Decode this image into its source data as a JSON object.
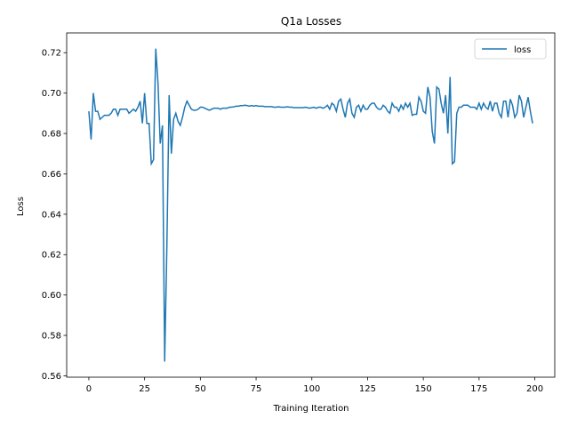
{
  "chart_data": {
    "type": "line",
    "title": "Q1a Losses",
    "xlabel": "Training Iteration",
    "ylabel": "Loss",
    "legend": "upper right",
    "grid": false,
    "xlim": [
      -9.95,
      208.95
    ],
    "xticks": [
      0,
      25,
      50,
      75,
      100,
      125,
      150,
      175,
      200
    ],
    "ylim": [
      0.5593,
      0.7298
    ],
    "yticks": [
      0.56,
      0.58,
      {
        "value": 0.6,
        "label": "0.60"
      },
      0.62,
      0.64,
      0.66,
      0.68,
      {
        "value": 0.7,
        "label": "0.70"
      },
      0.72
    ],
    "x": [
      0,
      1,
      2,
      3,
      4,
      5,
      6,
      7,
      8,
      9,
      10,
      11,
      12,
      13,
      14,
      15,
      16,
      17,
      18,
      19,
      20,
      21,
      22,
      23,
      24,
      25,
      26,
      27,
      28,
      29,
      30,
      31,
      32,
      33,
      34,
      35,
      36,
      37,
      38,
      39,
      40,
      41,
      42,
      43,
      44,
      45,
      46,
      47,
      48,
      49,
      50,
      51,
      52,
      53,
      54,
      55,
      56,
      57,
      58,
      59,
      60,
      61,
      62,
      63,
      64,
      65,
      66,
      67,
      68,
      69,
      70,
      71,
      72,
      73,
      74,
      75,
      76,
      77,
      78,
      79,
      80,
      81,
      82,
      83,
      84,
      85,
      86,
      87,
      88,
      89,
      90,
      91,
      92,
      93,
      94,
      95,
      96,
      97,
      98,
      99,
      100,
      101,
      102,
      103,
      104,
      105,
      106,
      107,
      108,
      109,
      110,
      111,
      112,
      113,
      114,
      115,
      116,
      117,
      118,
      119,
      120,
      121,
      122,
      123,
      124,
      125,
      126,
      127,
      128,
      129,
      130,
      131,
      132,
      133,
      134,
      135,
      136,
      137,
      138,
      139,
      140,
      141,
      142,
      143,
      144,
      145,
      146,
      147,
      148,
      149,
      150,
      151,
      152,
      153,
      154,
      155,
      156,
      157,
      158,
      159,
      160,
      161,
      162,
      163,
      164,
      165,
      166,
      167,
      168,
      169,
      170,
      171,
      172,
      173,
      174,
      175,
      176,
      177,
      178,
      179,
      180,
      181,
      182,
      183,
      184,
      185,
      186,
      187,
      188,
      189,
      190,
      191,
      192,
      193,
      194,
      195,
      196,
      197,
      198,
      199
    ],
    "series": [
      {
        "name": "loss",
        "color": "#1f77b4",
        "values": [
          0.691,
          0.677,
          0.7,
          0.691,
          0.691,
          0.687,
          0.688,
          0.689,
          0.689,
          0.689,
          0.69,
          0.692,
          0.692,
          0.689,
          0.692,
          0.692,
          0.692,
          0.692,
          0.69,
          0.691,
          0.692,
          0.691,
          0.693,
          0.696,
          0.685,
          0.7,
          0.685,
          0.685,
          0.665,
          0.667,
          0.722,
          0.705,
          0.675,
          0.684,
          0.567,
          0.625,
          0.699,
          0.67,
          0.687,
          0.69,
          0.686,
          0.684,
          0.688,
          0.693,
          0.696,
          0.694,
          0.692,
          0.6915,
          0.6915,
          0.692,
          0.693,
          0.693,
          0.6925,
          0.692,
          0.6915,
          0.692,
          0.6925,
          0.6925,
          0.6925,
          0.692,
          0.6925,
          0.6925,
          0.6925,
          0.693,
          0.693,
          0.6932,
          0.6935,
          0.6935,
          0.6938,
          0.6938,
          0.694,
          0.6938,
          0.6935,
          0.6938,
          0.6935,
          0.6938,
          0.6935,
          0.6935,
          0.6935,
          0.6933,
          0.6933,
          0.6933,
          0.6933,
          0.693,
          0.693,
          0.6932,
          0.693,
          0.693,
          0.693,
          0.6932,
          0.693,
          0.693,
          0.6928,
          0.6928,
          0.6928,
          0.6928,
          0.6928,
          0.693,
          0.6928,
          0.6925,
          0.6928,
          0.693,
          0.6925,
          0.693,
          0.693,
          0.6925,
          0.693,
          0.694,
          0.692,
          0.695,
          0.694,
          0.691,
          0.696,
          0.697,
          0.692,
          0.688,
          0.695,
          0.697,
          0.69,
          0.688,
          0.693,
          0.694,
          0.691,
          0.694,
          0.692,
          0.692,
          0.694,
          0.695,
          0.695,
          0.693,
          0.692,
          0.692,
          0.694,
          0.693,
          0.691,
          0.69,
          0.695,
          0.693,
          0.693,
          0.691,
          0.694,
          0.692,
          0.695,
          0.693,
          0.695,
          0.689,
          0.6895,
          0.6895,
          0.698,
          0.696,
          0.691,
          0.69,
          0.703,
          0.698,
          0.681,
          0.675,
          0.703,
          0.702,
          0.695,
          0.69,
          0.699,
          0.68,
          0.708,
          0.665,
          0.666,
          0.69,
          0.693,
          0.693,
          0.694,
          0.694,
          0.694,
          0.693,
          0.693,
          0.693,
          0.692,
          0.695,
          0.692,
          0.695,
          0.693,
          0.692,
          0.696,
          0.691,
          0.695,
          0.695,
          0.69,
          0.688,
          0.696,
          0.696,
          0.688,
          0.697,
          0.694,
          0.688,
          0.69,
          0.699,
          0.696,
          0.688,
          0.693,
          0.698,
          0.691,
          0.685
        ]
      }
    ]
  }
}
